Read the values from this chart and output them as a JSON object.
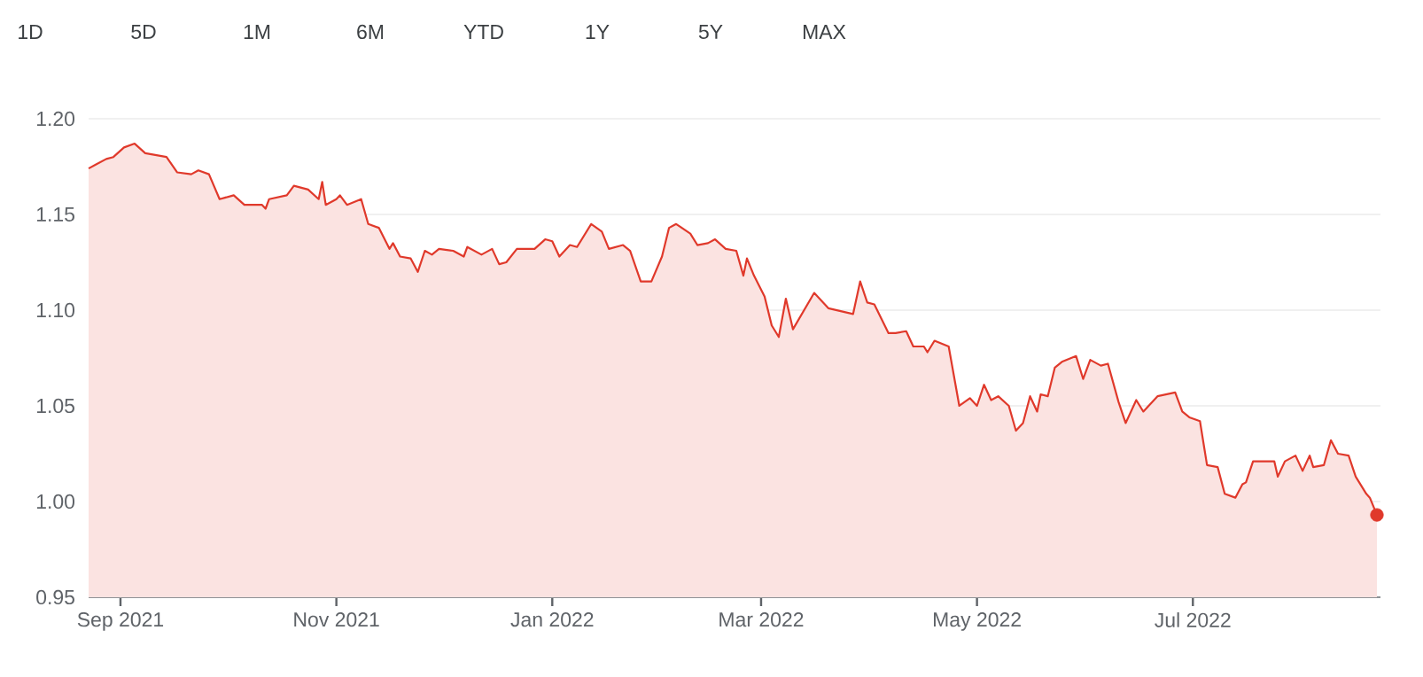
{
  "chart_data": {
    "type": "area",
    "annotations": [
      "1D",
      "5D",
      "1M",
      "6M",
      "YTD",
      "1Y",
      "5Y",
      "MAX"
    ],
    "x": [
      "2021-08-23",
      "2021-08-25",
      "2021-08-28",
      "2021-08-30",
      "2021-09-02",
      "2021-09-05",
      "2021-09-08",
      "2021-09-14",
      "2021-09-17",
      "2021-09-21",
      "2021-09-23",
      "2021-09-26",
      "2021-09-29",
      "2021-10-03",
      "2021-10-06",
      "2021-10-11",
      "2021-10-12",
      "2021-10-13",
      "2021-10-18",
      "2021-10-20",
      "2021-10-24",
      "2021-10-27",
      "2021-10-28",
      "2021-10-29",
      "2021-11-01",
      "2021-11-02",
      "2021-11-04",
      "2021-11-08",
      "2021-11-10",
      "2021-11-13",
      "2021-11-16",
      "2021-11-17",
      "2021-11-19",
      "2021-11-22",
      "2021-11-24",
      "2021-11-26",
      "2021-11-28",
      "2021-11-30",
      "2021-12-04",
      "2021-12-07",
      "2021-12-08",
      "2021-12-12",
      "2021-12-15",
      "2021-12-17",
      "2021-12-19",
      "2021-12-22",
      "2021-12-27",
      "2021-12-30",
      "2022-01-01",
      "2022-01-03",
      "2022-01-06",
      "2022-01-08",
      "2022-01-12",
      "2022-01-15",
      "2022-01-17",
      "2022-01-21",
      "2022-01-23",
      "2022-01-26",
      "2022-01-29",
      "2022-02-01",
      "2022-02-03",
      "2022-02-05",
      "2022-02-09",
      "2022-02-11",
      "2022-02-14",
      "2022-02-16",
      "2022-02-19",
      "2022-02-22",
      "2022-02-24",
      "2022-02-25",
      "2022-02-27",
      "2022-03-02",
      "2022-03-04",
      "2022-03-06",
      "2022-03-08",
      "2022-03-10",
      "2022-03-16",
      "2022-03-20",
      "2022-03-27",
      "2022-03-29",
      "2022-03-31",
      "2022-04-02",
      "2022-04-06",
      "2022-04-08",
      "2022-04-11",
      "2022-04-13",
      "2022-04-16",
      "2022-04-17",
      "2022-04-19",
      "2022-04-23",
      "2022-04-26",
      "2022-04-29",
      "2022-05-01",
      "2022-05-03",
      "2022-05-05",
      "2022-05-07",
      "2022-05-10",
      "2022-05-12",
      "2022-05-14",
      "2022-05-16",
      "2022-05-18",
      "2022-05-19",
      "2022-05-21",
      "2022-05-23",
      "2022-05-25",
      "2022-05-29",
      "2022-05-31",
      "2022-06-02",
      "2022-06-05",
      "2022-06-07",
      "2022-06-10",
      "2022-06-12",
      "2022-06-15",
      "2022-06-17",
      "2022-06-21",
      "2022-06-26",
      "2022-06-28",
      "2022-06-30",
      "2022-07-03",
      "2022-07-05",
      "2022-07-08",
      "2022-07-10",
      "2022-07-13",
      "2022-07-15",
      "2022-07-16",
      "2022-07-18",
      "2022-07-20",
      "2022-07-24",
      "2022-07-25",
      "2022-07-27",
      "2022-07-30",
      "2022-08-01",
      "2022-08-03",
      "2022-08-04",
      "2022-08-07",
      "2022-08-09",
      "2022-08-11",
      "2022-08-14",
      "2022-08-16",
      "2022-08-19",
      "2022-08-20",
      "2022-08-22"
    ],
    "series": [
      {
        "color": "#e0392b",
        "values": [
          1.174,
          1.176,
          1.179,
          1.18,
          1.185,
          1.187,
          1.182,
          1.18,
          1.172,
          1.171,
          1.173,
          1.171,
          1.158,
          1.16,
          1.155,
          1.155,
          1.153,
          1.158,
          1.16,
          1.165,
          1.163,
          1.158,
          1.167,
          1.155,
          1.158,
          1.16,
          1.155,
          1.158,
          1.145,
          1.143,
          1.132,
          1.135,
          1.128,
          1.127,
          1.12,
          1.131,
          1.129,
          1.132,
          1.131,
          1.128,
          1.133,
          1.129,
          1.132,
          1.124,
          1.125,
          1.132,
          1.132,
          1.137,
          1.136,
          1.128,
          1.134,
          1.133,
          1.145,
          1.141,
          1.132,
          1.134,
          1.131,
          1.115,
          1.115,
          1.128,
          1.143,
          1.145,
          1.14,
          1.134,
          1.135,
          1.137,
          1.132,
          1.131,
          1.118,
          1.127,
          1.118,
          1.107,
          1.092,
          1.086,
          1.106,
          1.09,
          1.109,
          1.101,
          1.098,
          1.115,
          1.104,
          1.103,
          1.088,
          1.088,
          1.089,
          1.081,
          1.081,
          1.078,
          1.084,
          1.081,
          1.05,
          1.054,
          1.05,
          1.061,
          1.053,
          1.055,
          1.05,
          1.037,
          1.041,
          1.055,
          1.047,
          1.056,
          1.055,
          1.07,
          1.073,
          1.076,
          1.064,
          1.074,
          1.071,
          1.072,
          1.052,
          1.041,
          1.053,
          1.047,
          1.055,
          1.057,
          1.047,
          1.044,
          1.042,
          1.019,
          1.018,
          1.004,
          1.002,
          1.009,
          1.01,
          1.021,
          1.021,
          1.021,
          1.013,
          1.021,
          1.024,
          1.016,
          1.024,
          1.018,
          1.019,
          1.032,
          1.025,
          1.024,
          1.013,
          1.004,
          1.002,
          0.993
        ]
      },
      {
        "type": "scatter",
        "color": "#e0392b",
        "marker": "circle",
        "x": [
          "2022-08-22"
        ],
        "values": [
          0.993
        ]
      }
    ],
    "xlim": [
      "2021-08-23",
      "2022-08-23"
    ],
    "xticks": [
      {
        "value": "2021-09-01",
        "label": "Sep 2021"
      },
      {
        "value": "2021-11-01",
        "label": "Nov 2021"
      },
      {
        "value": "2022-01-01",
        "label": "Jan 2022"
      },
      {
        "value": "2022-03-01",
        "label": "Mar 2022"
      },
      {
        "value": "2022-05-01",
        "label": "May 2022"
      },
      {
        "value": "2022-07-01",
        "label": "Jul 2022"
      }
    ],
    "ylim": [
      0.95,
      1.2
    ],
    "yticks": [
      0.95,
      {
        "value": 1.0,
        "label": "1.00"
      },
      1.05,
      {
        "value": 1.1,
        "label": "1.10"
      },
      1.15,
      {
        "value": 1.2,
        "label": "1.20"
      }
    ],
    "grid": "y"
  }
}
